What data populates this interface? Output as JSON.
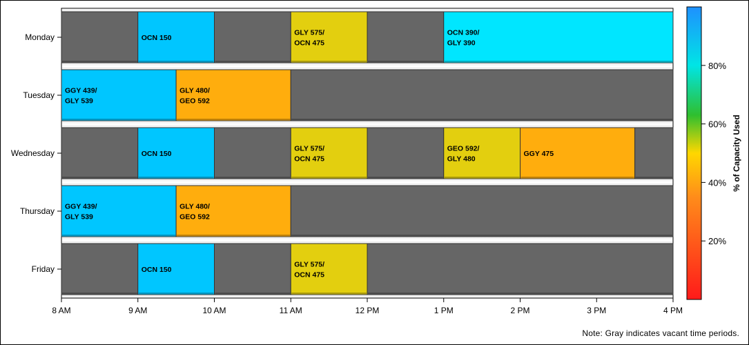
{
  "chart_data": {
    "type": "bar",
    "orientation": "horizontal-timeline",
    "title": "",
    "xlabel": "",
    "ylabel": "",
    "x_ticks": [
      "8 AM",
      "9 AM",
      "10 AM",
      "11 AM",
      "12 PM",
      "1 PM",
      "2 PM",
      "3 PM",
      "4 PM"
    ],
    "x_range_hours": [
      8,
      16
    ],
    "categories": [
      "Monday",
      "Tuesday",
      "Wednesday",
      "Thursday",
      "Friday"
    ],
    "rows": [
      {
        "day": "Monday",
        "segments": [
          {
            "start": 8,
            "end": 9,
            "label": [],
            "status": "vacant"
          },
          {
            "start": 9,
            "end": 10,
            "label": [
              "OCN 150"
            ],
            "capacity_pct": 88
          },
          {
            "start": 10,
            "end": 11,
            "label": [],
            "status": "vacant"
          },
          {
            "start": 11,
            "end": 12,
            "label": [
              "GLY 575/",
              "OCN 475"
            ],
            "capacity_pct": 47
          },
          {
            "start": 12,
            "end": 13,
            "label": [],
            "status": "vacant"
          },
          {
            "start": 13,
            "end": 16,
            "label": [
              "OCN 390/",
              "GLY 390"
            ],
            "capacity_pct": 83
          }
        ]
      },
      {
        "day": "Tuesday",
        "segments": [
          {
            "start": 8,
            "end": 9.5,
            "label": [
              "GGY 439/",
              "GLY 539"
            ],
            "capacity_pct": 88
          },
          {
            "start": 9.5,
            "end": 11,
            "label": [
              "GLY 480/",
              "GEO 592"
            ],
            "capacity_pct": 38
          },
          {
            "start": 11,
            "end": 16,
            "label": [],
            "status": "vacant"
          }
        ]
      },
      {
        "day": "Wednesday",
        "segments": [
          {
            "start": 8,
            "end": 9,
            "label": [],
            "status": "vacant"
          },
          {
            "start": 9,
            "end": 10,
            "label": [
              "OCN 150"
            ],
            "capacity_pct": 88
          },
          {
            "start": 10,
            "end": 11,
            "label": [],
            "status": "vacant"
          },
          {
            "start": 11,
            "end": 12,
            "label": [
              "GLY 575/",
              "OCN 475"
            ],
            "capacity_pct": 47
          },
          {
            "start": 12,
            "end": 13,
            "label": [],
            "status": "vacant"
          },
          {
            "start": 13,
            "end": 14,
            "label": [
              "GEO 592/",
              "GLY 480"
            ],
            "capacity_pct": 47
          },
          {
            "start": 14,
            "end": 15.5,
            "label": [
              "GGY 475"
            ],
            "capacity_pct": 38
          },
          {
            "start": 15.5,
            "end": 16,
            "label": [],
            "status": "vacant"
          }
        ]
      },
      {
        "day": "Thursday",
        "segments": [
          {
            "start": 8,
            "end": 9.5,
            "label": [
              "GGY 439/",
              "GLY 539"
            ],
            "capacity_pct": 88
          },
          {
            "start": 9.5,
            "end": 11,
            "label": [
              "GLY 480/",
              "GEO 592"
            ],
            "capacity_pct": 38
          },
          {
            "start": 11,
            "end": 16,
            "label": [],
            "status": "vacant"
          }
        ]
      },
      {
        "day": "Friday",
        "segments": [
          {
            "start": 8,
            "end": 9,
            "label": [],
            "status": "vacant"
          },
          {
            "start": 9,
            "end": 10,
            "label": [
              "OCN 150"
            ],
            "capacity_pct": 88
          },
          {
            "start": 10,
            "end": 11,
            "label": [],
            "status": "vacant"
          },
          {
            "start": 11,
            "end": 12,
            "label": [
              "GLY 575/",
              "OCN 475"
            ],
            "capacity_pct": 47
          },
          {
            "start": 12,
            "end": 16,
            "label": [],
            "status": "vacant"
          }
        ]
      }
    ],
    "colorbar": {
      "title": "% of Capacity Used",
      "ticks": [
        "20%",
        "40%",
        "60%",
        "80%"
      ],
      "tick_values": [
        20,
        40,
        60,
        80
      ],
      "range": [
        0,
        100
      ],
      "gradient": [
        "#ff1a1a",
        "#ff8c1a",
        "#ffd700",
        "#2fbf2f",
        "#00e5e5",
        "#1e90ff"
      ]
    },
    "colors": {
      "vacant": "#666666",
      "row_band": "#e6e6e6",
      "orange": "#ff8c10",
      "yellow": "#ffd20a",
      "light_blue": "#00c6ff",
      "cyan": "#00e6ff"
    },
    "note": "Note: Gray indicates vacant time periods."
  }
}
